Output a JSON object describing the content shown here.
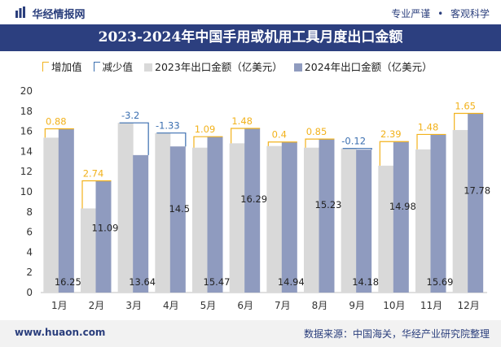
{
  "header": {
    "brand": "华经情报网",
    "tags": [
      "专业严谨",
      "客观科学"
    ]
  },
  "footer": {
    "url": "www.huaon.com",
    "source": "数据来源：中国海关，华经产业研究院整理"
  },
  "colors": {
    "bar2023": "#d9d9d9",
    "bar2024": "#8f9bbf",
    "increase": "#f2b21c",
    "decrease": "#3b6fb0",
    "titlebar": "#2c3f7f",
    "label2024": "#222222"
  },
  "chart_data": {
    "type": "bar",
    "title": "2023-2024年中国手用或机用工具月度出口金额",
    "legend": [
      "增加值",
      "减少值",
      "2023年出口金额（亿美元）",
      "2024年出口金额（亿美元）"
    ],
    "categories": [
      "1月",
      "2月",
      "3月",
      "4月",
      "5月",
      "6月",
      "7月",
      "8月",
      "9月",
      "10月",
      "11月",
      "12月"
    ],
    "series": [
      {
        "name": "2023年出口金额（亿美元）",
        "values": [
          15.37,
          8.35,
          16.84,
          15.83,
          14.38,
          14.81,
          14.54,
          14.38,
          14.3,
          12.59,
          14.21,
          16.13
        ]
      },
      {
        "name": "2024年出口金额（亿美元）",
        "values": [
          16.25,
          11.09,
          13.64,
          14.5,
          15.47,
          16.29,
          14.94,
          15.23,
          14.18,
          14.98,
          15.69,
          17.78
        ]
      }
    ],
    "change": [
      0.88,
      2.74,
      -3.2,
      -1.33,
      1.09,
      1.48,
      0.4,
      0.85,
      -0.12,
      2.39,
      1.48,
      1.65
    ],
    "ylim": [
      0,
      20
    ],
    "yticks": [
      0,
      2,
      4,
      6,
      8,
      10,
      12,
      14,
      16,
      18,
      20
    ]
  }
}
